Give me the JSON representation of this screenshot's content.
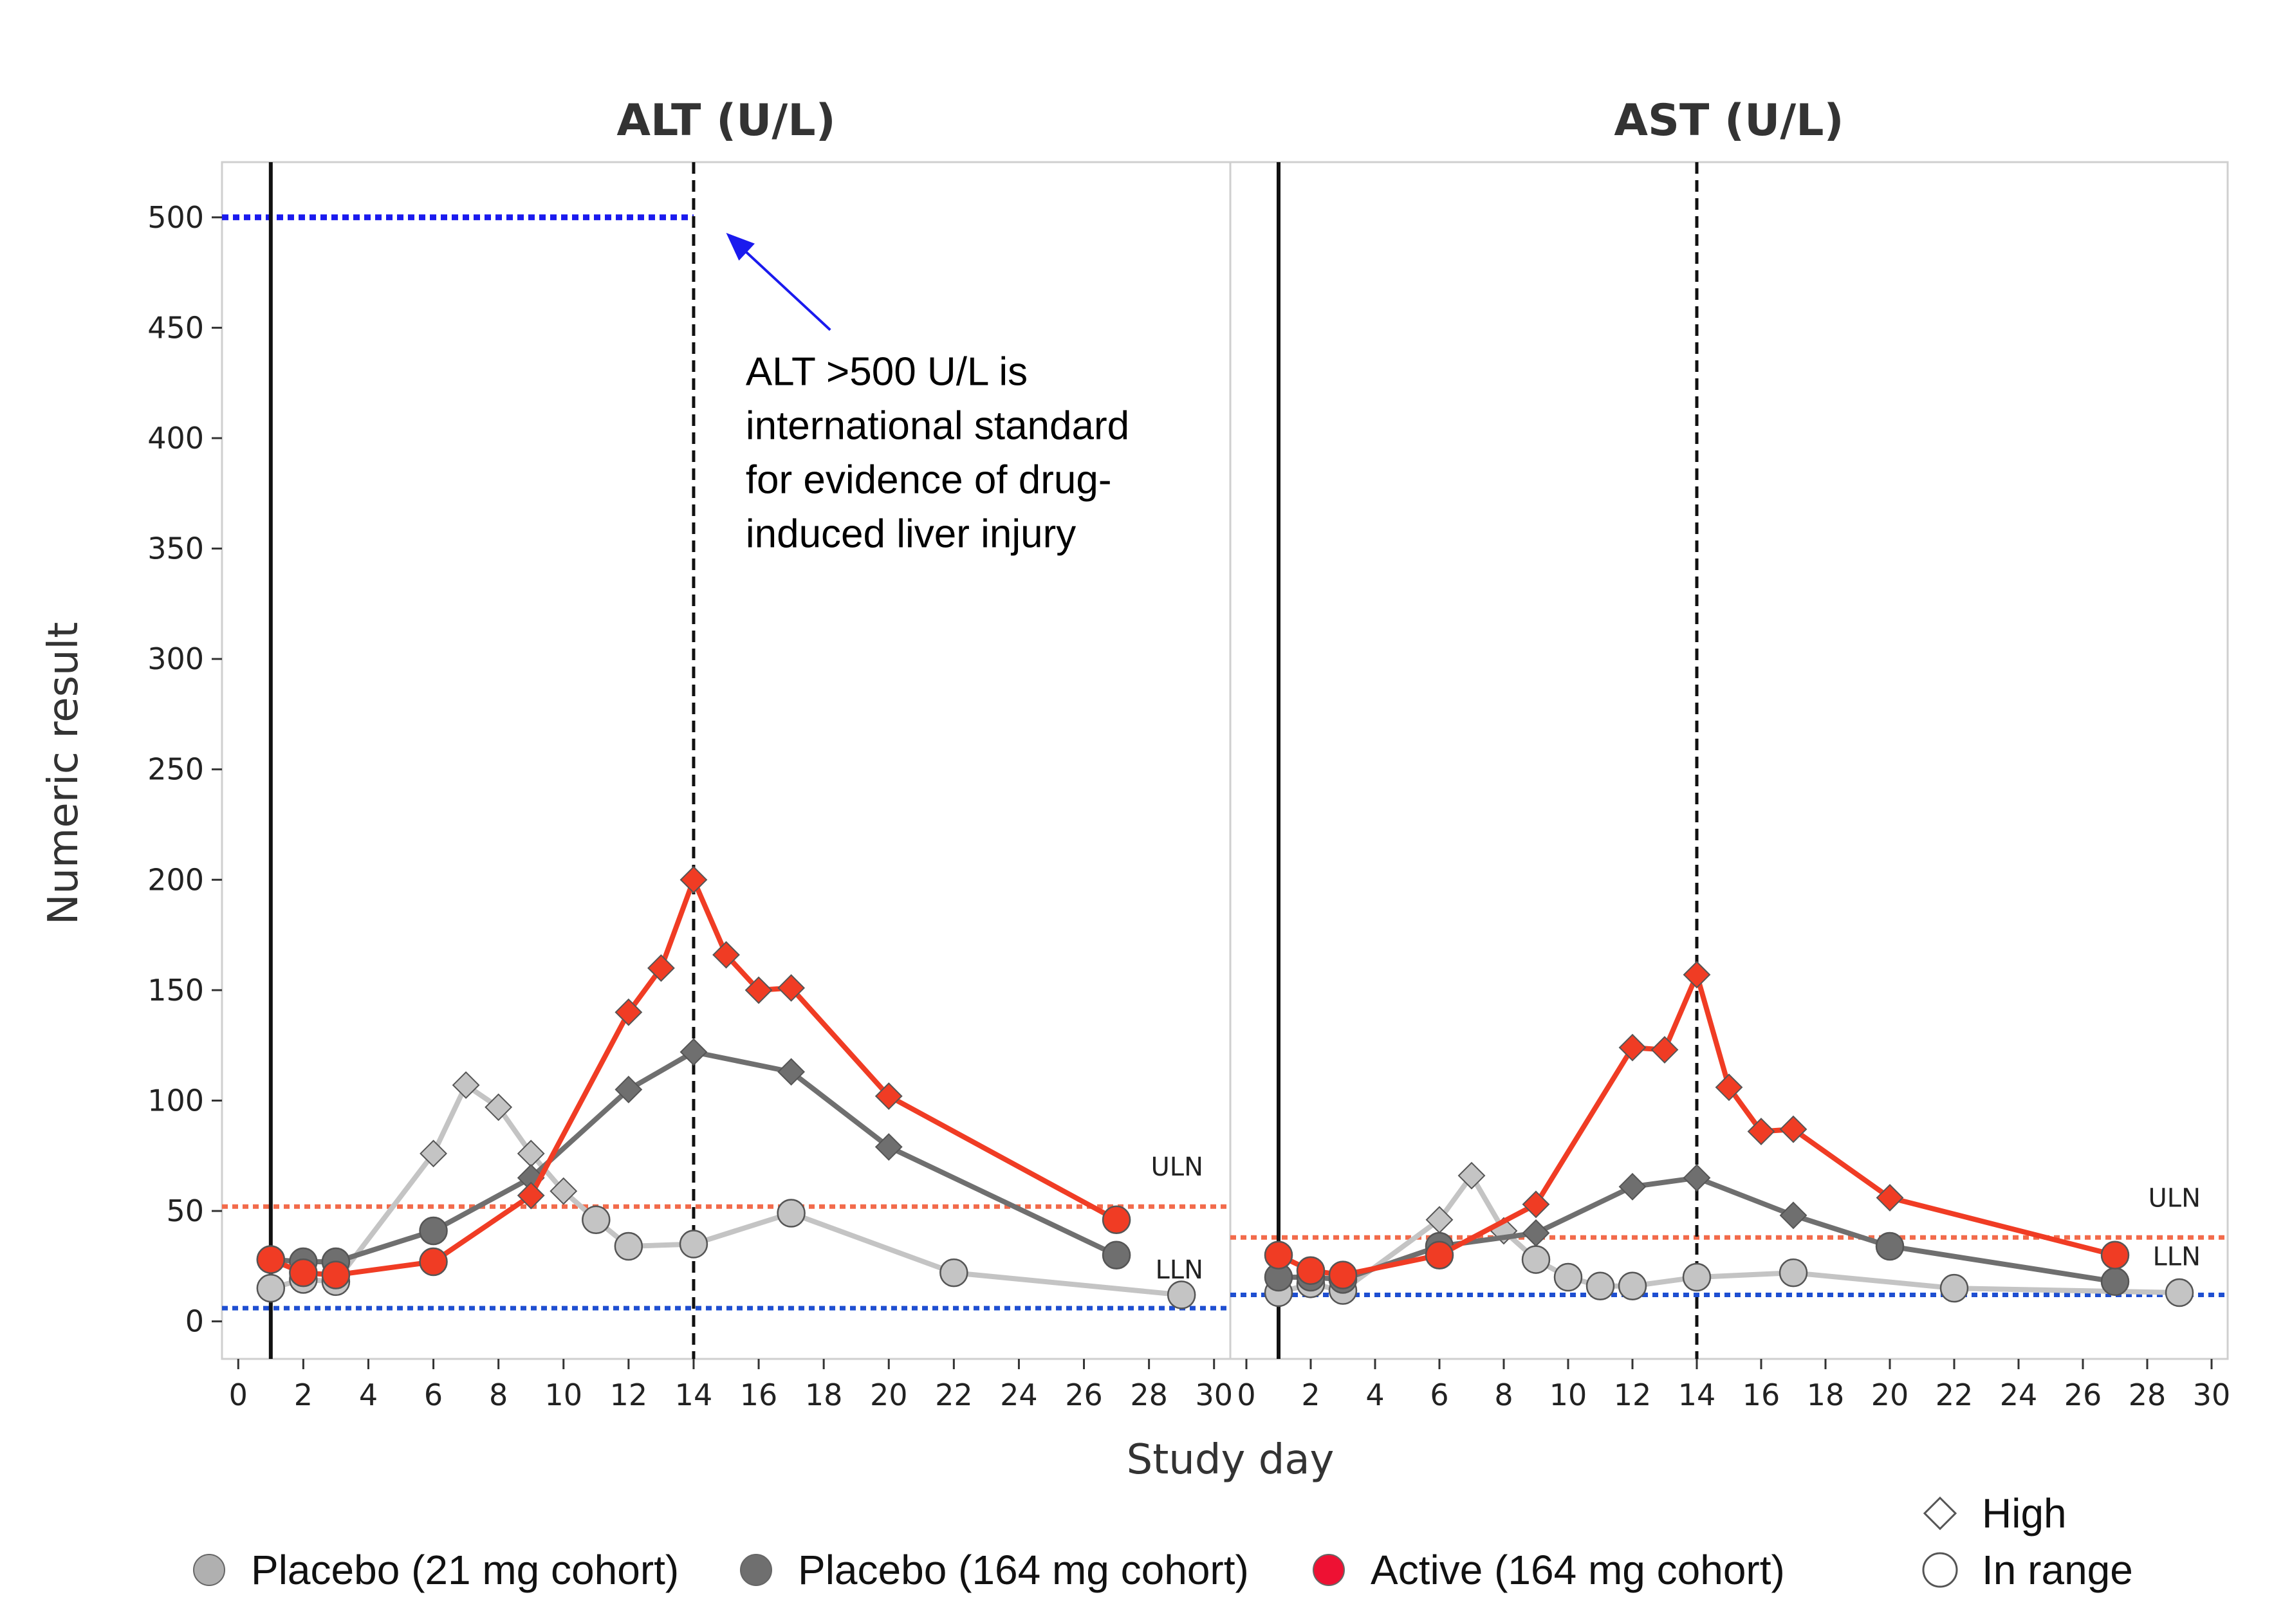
{
  "chart_data": [
    {
      "type": "line",
      "title": "ALT (U/L)",
      "xlabel": "Study day",
      "ylabel": "Numeric result",
      "xlim": [
        -0.5,
        30.5
      ],
      "ylim": [
        -17,
        525
      ],
      "x_ticks": [
        0,
        2,
        4,
        6,
        8,
        10,
        12,
        14,
        16,
        18,
        20,
        22,
        24,
        26,
        28,
        30
      ],
      "y_ticks": [
        0,
        50,
        100,
        150,
        200,
        250,
        300,
        350,
        400,
        450,
        500
      ],
      "vlines": [
        {
          "x": 1,
          "style": "solid"
        },
        {
          "x": 14,
          "style": "dashed"
        }
      ],
      "hlines": [
        {
          "name": "ULN",
          "y": 52,
          "color": "#f26b4b",
          "label": "ULN"
        },
        {
          "name": "LLN",
          "y": 6,
          "color": "#1f4fd1",
          "label": "LLN"
        },
        {
          "name": "threshold",
          "y": 500,
          "color": "#1a1aee",
          "x_range": [
            -0.5,
            14
          ]
        }
      ],
      "annotation": {
        "lines": [
          "ALT >500 U/L is",
          "international standard",
          "for evidence of drug-",
          "induced liver injury"
        ],
        "arrow_to": [
          15,
          493
        ],
        "arrow_from": [
          18.2,
          449
        ],
        "text_x": 15.6,
        "text_y": 424
      },
      "series": [
        {
          "name": "Placebo (21 mg cohort)",
          "color": "#c4c4c4",
          "points": [
            [
              1,
              15,
              "o"
            ],
            [
              2,
              19,
              "o"
            ],
            [
              3,
              18,
              "o"
            ],
            [
              6,
              76,
              "d"
            ],
            [
              7,
              107,
              "d"
            ],
            [
              8,
              97,
              "d"
            ],
            [
              9,
              76,
              "d"
            ],
            [
              10,
              59,
              "d"
            ],
            [
              11,
              46,
              "o"
            ],
            [
              12,
              34,
              "o"
            ],
            [
              14,
              35,
              "o"
            ],
            [
              17,
              49,
              "o"
            ],
            [
              22,
              22,
              "o"
            ],
            [
              29,
              12,
              "o"
            ]
          ]
        },
        {
          "name": "Placebo (164 mg cohort)",
          "color": "#6f6f6f",
          "points": [
            [
              1,
              28,
              "o"
            ],
            [
              2,
              27,
              "o"
            ],
            [
              3,
              27,
              "o"
            ],
            [
              6,
              41,
              "o"
            ],
            [
              9,
              65,
              "d"
            ],
            [
              12,
              105,
              "d"
            ],
            [
              14,
              122,
              "d"
            ],
            [
              17,
              113,
              "d"
            ],
            [
              20,
              79,
              "d"
            ],
            [
              27,
              30,
              "o"
            ]
          ]
        },
        {
          "name": "Active (164 mg cohort)",
          "color": "#f03c24",
          "points": [
            [
              1,
              28,
              "o"
            ],
            [
              2,
              22,
              "o"
            ],
            [
              3,
              21,
              "o"
            ],
            [
              6,
              27,
              "o"
            ],
            [
              9,
              57,
              "d"
            ],
            [
              12,
              140,
              "d"
            ],
            [
              13,
              160,
              "d"
            ],
            [
              14,
              200,
              "d"
            ],
            [
              15,
              166,
              "d"
            ],
            [
              16,
              150,
              "d"
            ],
            [
              17,
              151,
              "d"
            ],
            [
              20,
              102,
              "d"
            ],
            [
              27,
              46,
              "o"
            ]
          ]
        }
      ]
    },
    {
      "type": "line",
      "title": "AST (U/L)",
      "xlabel": "Study day",
      "ylabel": "Numeric result",
      "xlim": [
        -0.5,
        30.5
      ],
      "ylim": [
        -17,
        525
      ],
      "x_ticks": [
        0,
        2,
        4,
        6,
        8,
        10,
        12,
        14,
        16,
        18,
        20,
        22,
        24,
        26,
        28,
        30
      ],
      "vlines": [
        {
          "x": 1,
          "style": "solid"
        },
        {
          "x": 14,
          "style": "dashed"
        }
      ],
      "hlines": [
        {
          "name": "ULN",
          "y": 38,
          "color": "#f26b4b",
          "label": "ULN"
        },
        {
          "name": "LLN",
          "y": 12,
          "color": "#1f4fd1",
          "label": "LLN"
        }
      ],
      "series": [
        {
          "name": "Placebo (21 mg cohort)",
          "color": "#c4c4c4",
          "points": [
            [
              1,
              13,
              "o"
            ],
            [
              2,
              17,
              "o"
            ],
            [
              3,
              14,
              "o"
            ],
            [
              6,
              46,
              "d"
            ],
            [
              7,
              66,
              "d"
            ],
            [
              8,
              41,
              "d"
            ],
            [
              9,
              28,
              "o"
            ],
            [
              10,
              20,
              "o"
            ],
            [
              11,
              16,
              "o"
            ],
            [
              12,
              16,
              "o"
            ],
            [
              14,
              20,
              "o"
            ],
            [
              17,
              22,
              "o"
            ],
            [
              22,
              15,
              "o"
            ],
            [
              29,
              13,
              "o"
            ]
          ]
        },
        {
          "name": "Placebo (164 mg cohort)",
          "color": "#6f6f6f",
          "points": [
            [
              1,
              20,
              "o"
            ],
            [
              2,
              20,
              "o"
            ],
            [
              3,
              19,
              "o"
            ],
            [
              6,
              34,
              "o"
            ],
            [
              9,
              40,
              "d"
            ],
            [
              12,
              61,
              "d"
            ],
            [
              14,
              65,
              "d"
            ],
            [
              17,
              48,
              "d"
            ],
            [
              20,
              34,
              "o"
            ],
            [
              27,
              18,
              "o"
            ]
          ]
        },
        {
          "name": "Active (164 mg cohort)",
          "color": "#f03c24",
          "points": [
            [
              1,
              30,
              "o"
            ],
            [
              2,
              23,
              "o"
            ],
            [
              3,
              21,
              "o"
            ],
            [
              6,
              30,
              "o"
            ],
            [
              9,
              53,
              "d"
            ],
            [
              12,
              124,
              "d"
            ],
            [
              13,
              123,
              "d"
            ],
            [
              14,
              157,
              "d"
            ],
            [
              15,
              106,
              "d"
            ],
            [
              16,
              86,
              "d"
            ],
            [
              17,
              87,
              "d"
            ],
            [
              20,
              56,
              "d"
            ],
            [
              27,
              30,
              "o"
            ]
          ]
        }
      ]
    }
  ],
  "legend": {
    "series": [
      {
        "label": "Placebo (21 mg cohort)",
        "color": "#b0b0b0"
      },
      {
        "label": "Placebo (164 mg cohort)",
        "color": "#6f6f6f"
      },
      {
        "label": "Active (164 mg cohort)",
        "color": "#ee1133"
      }
    ],
    "shapes": [
      {
        "label": "High",
        "shape": "diamond"
      },
      {
        "label": "In range",
        "shape": "circle"
      }
    ]
  }
}
